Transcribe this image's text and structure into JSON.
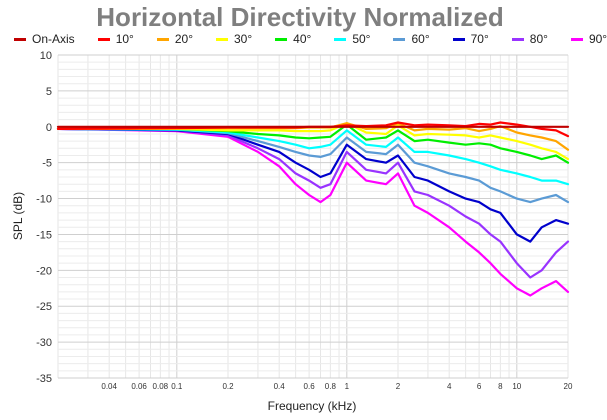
{
  "chart_data": {
    "type": "line",
    "title": "Horizontal Directivity Normalized",
    "xlabel": "Frequency (kHz)",
    "ylabel": "SPL (dB)",
    "xscale": "log",
    "xlim": [
      0.02,
      20
    ],
    "ylim": [
      -35,
      10
    ],
    "y_ticks": [
      10,
      5,
      0,
      -5,
      -10,
      -15,
      -20,
      -25,
      -30,
      -35
    ],
    "x_ticks": [
      {
        "value": 0.04,
        "label": "0.04"
      },
      {
        "value": 0.06,
        "label": "0.06"
      },
      {
        "value": 0.08,
        "label": "0.08"
      },
      {
        "value": 0.1,
        "label": "0.1"
      },
      {
        "value": 0.2,
        "label": "0.2"
      },
      {
        "value": 0.4,
        "label": "0.4"
      },
      {
        "value": 0.6,
        "label": "0.6"
      },
      {
        "value": 0.8,
        "label": "0.8"
      },
      {
        "value": 1,
        "label": "1"
      },
      {
        "value": 2,
        "label": "2"
      },
      {
        "value": 4,
        "label": "4"
      },
      {
        "value": 6,
        "label": "6"
      },
      {
        "value": 8,
        "label": "8"
      },
      {
        "value": 10,
        "label": "10"
      },
      {
        "value": 20,
        "label": "20"
      }
    ],
    "grid": true,
    "legend_position": "top",
    "x": [
      0.02,
      0.1,
      0.2,
      0.3,
      0.4,
      0.5,
      0.6,
      0.7,
      0.8,
      1.0,
      1.3,
      1.7,
      2.0,
      2.5,
      3.0,
      4.0,
      5.0,
      6.0,
      7.0,
      8.0,
      10.0,
      12.0,
      14.0,
      17.0,
      20.0
    ],
    "series": [
      {
        "name": "On-Axis",
        "color": "#c00000",
        "values": [
          0,
          0,
          0,
          0,
          0,
          0,
          0,
          0,
          0,
          0,
          0,
          0,
          0,
          0,
          0,
          0,
          0,
          0,
          0,
          0,
          0,
          0,
          0,
          0,
          0
        ]
      },
      {
        "name": "10°",
        "color": "#ff0000",
        "values": [
          -0.3,
          -0.2,
          -0.1,
          -0.1,
          -0.1,
          -0.1,
          0,
          0,
          0,
          0.2,
          0.1,
          0.2,
          0.6,
          0.2,
          0.3,
          0.2,
          0.1,
          0.4,
          0.3,
          0.6,
          0.3,
          0,
          -0.3,
          -0.5,
          -1.3
        ]
      },
      {
        "name": "20°",
        "color": "#ffa500",
        "values": [
          -0.3,
          -0.2,
          -0.2,
          -0.2,
          -0.2,
          -0.2,
          -0.1,
          -0.1,
          -0.1,
          0.5,
          -0.3,
          -0.2,
          0.5,
          -0.5,
          -0.3,
          -0.4,
          -0.2,
          -0.6,
          -0.3,
          0.1,
          -0.8,
          -1.2,
          -1.5,
          -2.0,
          -3.2
        ]
      },
      {
        "name": "30°",
        "color": "#ffff00",
        "values": [
          -0.3,
          -0.3,
          -0.5,
          -0.5,
          -0.5,
          -0.6,
          -0.6,
          -0.6,
          -0.5,
          0.5,
          -0.8,
          -1.0,
          0.2,
          -1.2,
          -1.0,
          -1.1,
          -1.2,
          -1.5,
          -1.2,
          -1.5,
          -2.0,
          -2.5,
          -3.0,
          -3.5,
          -4.5
        ]
      },
      {
        "name": "40°",
        "color": "#00ee00",
        "values": [
          -0.3,
          -0.3,
          -0.6,
          -1.0,
          -1.2,
          -1.5,
          -1.6,
          -1.5,
          -1.4,
          0.3,
          -1.8,
          -1.5,
          -0.5,
          -2.0,
          -1.8,
          -2.2,
          -2.5,
          -2.3,
          -2.5,
          -3.0,
          -3.5,
          -4.0,
          -4.5,
          -4.0,
          -5.0
        ]
      },
      {
        "name": "50°",
        "color": "#00ffff",
        "values": [
          -0.3,
          -0.4,
          -0.8,
          -1.5,
          -2.0,
          -2.5,
          -3.0,
          -2.8,
          -2.5,
          -0.5,
          -2.5,
          -2.8,
          -1.5,
          -3.5,
          -3.5,
          -4.0,
          -4.5,
          -5.0,
          -5.5,
          -6.0,
          -6.5,
          -7.0,
          -7.5,
          -7.5,
          -8.0
        ]
      },
      {
        "name": "60°",
        "color": "#5b9bd5",
        "values": [
          -0.3,
          -0.4,
          -0.9,
          -2.0,
          -2.8,
          -3.5,
          -4.0,
          -4.2,
          -3.8,
          -1.5,
          -3.5,
          -3.8,
          -2.5,
          -5.0,
          -5.5,
          -6.5,
          -7.0,
          -7.5,
          -8.5,
          -9.0,
          -10.0,
          -10.5,
          -10.0,
          -9.5,
          -10.5
        ]
      },
      {
        "name": "70°",
        "color": "#0000cc",
        "values": [
          -0.3,
          -0.5,
          -1.0,
          -2.5,
          -3.5,
          -5.0,
          -6.0,
          -7.0,
          -6.5,
          -2.5,
          -4.5,
          -5.0,
          -4.0,
          -7.0,
          -7.5,
          -9.0,
          -10.0,
          -10.5,
          -11.5,
          -12.0,
          -15.0,
          -16.0,
          -14.0,
          -13.0,
          -13.5
        ]
      },
      {
        "name": "80°",
        "color": "#9933ff",
        "values": [
          -0.3,
          -0.5,
          -1.2,
          -3.0,
          -4.5,
          -6.5,
          -7.5,
          -8.5,
          -8.0,
          -3.5,
          -6.0,
          -6.5,
          -5.0,
          -9.0,
          -9.5,
          -11.0,
          -12.5,
          -13.5,
          -15.0,
          -16.0,
          -19.0,
          -21.0,
          -20.0,
          -17.5,
          -16.0
        ]
      },
      {
        "name": "90°",
        "color": "#ff00ff",
        "values": [
          -0.3,
          -0.6,
          -1.4,
          -3.5,
          -5.5,
          -8.0,
          -9.5,
          -10.5,
          -9.5,
          -5.0,
          -7.5,
          -8.0,
          -6.5,
          -11.0,
          -12.0,
          -14.0,
          -16.0,
          -17.5,
          -19.0,
          -20.5,
          -22.5,
          -23.5,
          -22.5,
          -21.5,
          -23.0
        ]
      }
    ]
  }
}
